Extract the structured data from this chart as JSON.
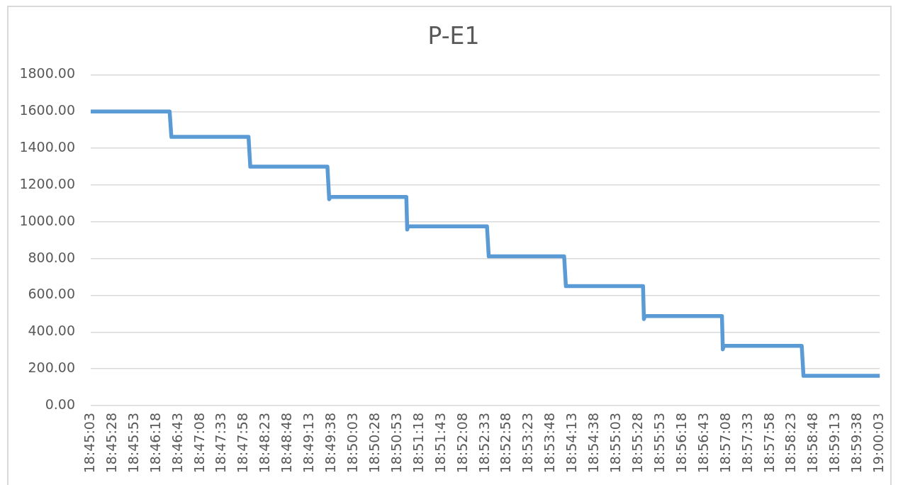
{
  "chart_data": {
    "type": "line",
    "title": "P-E1",
    "x": [
      18.750833,
      18.775833,
      18.776389,
      18.800833,
      18.801389,
      18.825833,
      18.826389,
      18.826667,
      18.850833,
      18.851111,
      18.851389,
      18.876389,
      18.876944,
      18.900833,
      18.901389,
      18.925833,
      18.926111,
      18.926389,
      18.950833,
      18.951111,
      18.951389,
      18.976111,
      18.976667,
      19.000833
    ],
    "values": [
      1600,
      1600,
      1462,
      1462,
      1300,
      1300,
      1123,
      1135,
      1135,
      958,
      975,
      975,
      812,
      812,
      650,
      650,
      471,
      487,
      487,
      306,
      325,
      325,
      162,
      162
    ],
    "color": "#5b9bd5",
    "xlim": [
      18.750833,
      19.000833
    ],
    "xticks": [
      {
        "value": 18.750833,
        "label": "18:45:03"
      },
      {
        "value": 18.757778,
        "label": "18:45:28"
      },
      {
        "value": 18.764722,
        "label": "18:45:53"
      },
      {
        "value": 18.771667,
        "label": "18:46:18"
      },
      {
        "value": 18.778611,
        "label": "18:46:43"
      },
      {
        "value": 18.785556,
        "label": "18:47:08"
      },
      {
        "value": 18.7925,
        "label": "18:47:33"
      },
      {
        "value": 18.799444,
        "label": "18:47:58"
      },
      {
        "value": 18.806389,
        "label": "18:48:23"
      },
      {
        "value": 18.813333,
        "label": "18:48:48"
      },
      {
        "value": 18.820278,
        "label": "18:49:13"
      },
      {
        "value": 18.827222,
        "label": "18:49:38"
      },
      {
        "value": 18.834167,
        "label": "18:50:03"
      },
      {
        "value": 18.841111,
        "label": "18:50:28"
      },
      {
        "value": 18.848056,
        "label": "18:50:53"
      },
      {
        "value": 18.855,
        "label": "18:51:18"
      },
      {
        "value": 18.861944,
        "label": "18:51:43"
      },
      {
        "value": 18.868889,
        "label": "18:52:08"
      },
      {
        "value": 18.875833,
        "label": "18:52:33"
      },
      {
        "value": 18.882778,
        "label": "18:52:58"
      },
      {
        "value": 18.889722,
        "label": "18:53:23"
      },
      {
        "value": 18.896667,
        "label": "18:53:48"
      },
      {
        "value": 18.903611,
        "label": "18:54:13"
      },
      {
        "value": 18.910556,
        "label": "18:54:38"
      },
      {
        "value": 18.9175,
        "label": "18:55:03"
      },
      {
        "value": 18.924444,
        "label": "18:55:28"
      },
      {
        "value": 18.931389,
        "label": "18:55:53"
      },
      {
        "value": 18.938333,
        "label": "18:56:18"
      },
      {
        "value": 18.945278,
        "label": "18:56:43"
      },
      {
        "value": 18.952222,
        "label": "18:57:08"
      },
      {
        "value": 18.959167,
        "label": "18:57:33"
      },
      {
        "value": 18.966111,
        "label": "18:57:58"
      },
      {
        "value": 18.973056,
        "label": "18:58:23"
      },
      {
        "value": 18.98,
        "label": "18:58:48"
      },
      {
        "value": 18.986944,
        "label": "18:59:13"
      },
      {
        "value": 18.993889,
        "label": "18:59:38"
      },
      {
        "value": 19.000833,
        "label": "19:00:03"
      }
    ],
    "ylim": [
      0,
      1800
    ],
    "yticks": [
      {
        "value": 0,
        "label": "0.00"
      },
      {
        "value": 200,
        "label": "200.00"
      },
      {
        "value": 400,
        "label": "400.00"
      },
      {
        "value": 600,
        "label": "600.00"
      },
      {
        "value": 800,
        "label": "800.00"
      },
      {
        "value": 1000,
        "label": "1000.00"
      },
      {
        "value": 1200,
        "label": "1200.00"
      },
      {
        "value": 1400,
        "label": "1400.00"
      },
      {
        "value": 1600,
        "label": "1600.00"
      },
      {
        "value": 1800,
        "label": "1800.00"
      }
    ],
    "grid": "y",
    "marker": "none"
  }
}
